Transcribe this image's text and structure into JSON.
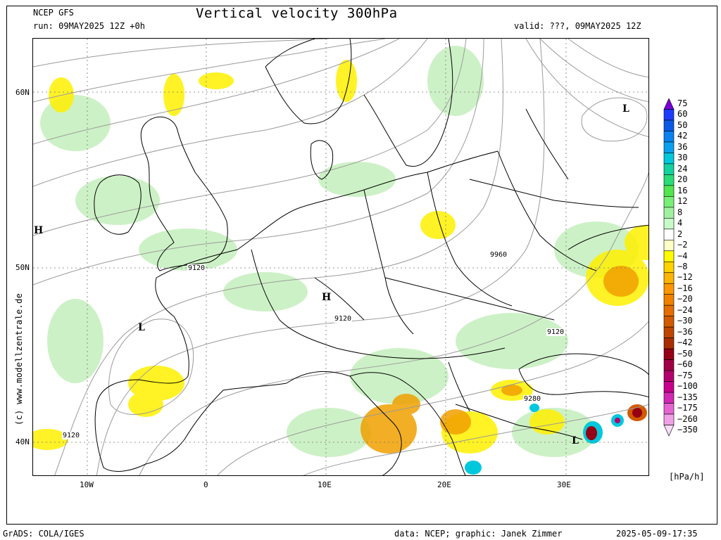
{
  "header": {
    "source": "NCEP GFS",
    "run": "run: 09MAY2025 12Z +0h",
    "title": "Vertical velocity 300hPa",
    "valid": "valid: ???, 09MAY2025 12Z"
  },
  "side_text": "(c) www.modellzentrale.de",
  "footer": {
    "left": "GrADS: COLA/IGES",
    "credits": "data: NCEP; graphic: Janek Zimmer",
    "timestamp": "2025-05-09-17:35"
  },
  "axes": {
    "lat_labels": [
      "60N",
      "50N",
      "40N"
    ],
    "lon_labels": [
      "10W",
      "0",
      "10E",
      "20E",
      "30E"
    ]
  },
  "pressure_centers": [
    "L",
    "H",
    "L",
    "H",
    "L"
  ],
  "contour_labels": [
    "9120",
    "9120",
    "9120",
    "9120",
    "9960",
    "9280"
  ],
  "colorbar": {
    "labels": [
      "75",
      "60",
      "50",
      "42",
      "36",
      "30",
      "24",
      "20",
      "16",
      "12",
      "8",
      "4",
      "2",
      "−2",
      "−4",
      "−8",
      "−12",
      "−16",
      "−20",
      "−24",
      "−30",
      "−36",
      "−42",
      "−50",
      "−60",
      "−75",
      "−100",
      "−135",
      "−175",
      "−260",
      "−350"
    ],
    "colors": [
      "#7800dc",
      "#1e3cff",
      "#0a5ae6",
      "#0a82f0",
      "#0aa0f0",
      "#00c8dc",
      "#14d2a0",
      "#28dc78",
      "#50e650",
      "#78f078",
      "#a0f0a0",
      "#c8fac8",
      "#ffffff",
      "#ffffc8",
      "#fffa00",
      "#ffd200",
      "#ffb400",
      "#ff9600",
      "#f08200",
      "#e66e00",
      "#d25a00",
      "#be4600",
      "#aa2d00",
      "#960014",
      "#a00046",
      "#b4006e",
      "#c8008c",
      "#d228b4",
      "#e664d2",
      "#f0a0e6",
      "#fadcfa"
    ],
    "unit": "[hPa/h]"
  }
}
